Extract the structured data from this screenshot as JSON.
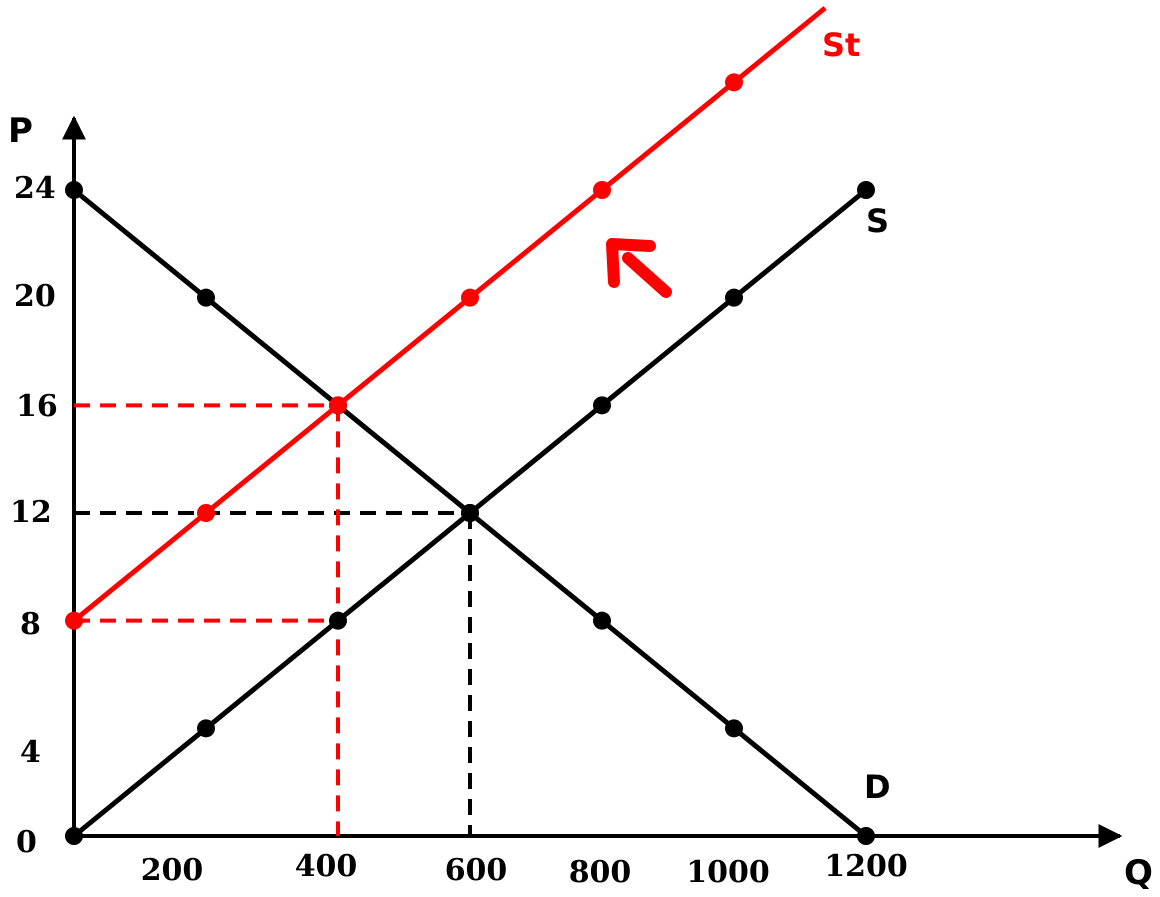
{
  "chart_data": {
    "type": "line",
    "title": "",
    "xlabel": "Q",
    "ylabel": "P",
    "x_ticks": [
      "200",
      "400",
      "600",
      "800",
      "1000",
      "1200"
    ],
    "y_ticks": [
      "0",
      "4",
      "8",
      "12",
      "16",
      "20",
      "24"
    ],
    "xlim": [
      0,
      1200
    ],
    "ylim": [
      0,
      24
    ],
    "grid": false,
    "series": [
      {
        "name": "D",
        "color": "#000000",
        "points": [
          [
            0,
            24
          ],
          [
            200,
            20
          ],
          [
            400,
            16
          ],
          [
            600,
            12
          ],
          [
            800,
            8
          ],
          [
            1000,
            4
          ],
          [
            1200,
            0
          ]
        ]
      },
      {
        "name": "S",
        "color": "#000000",
        "points": [
          [
            0,
            0
          ],
          [
            200,
            4
          ],
          [
            400,
            8
          ],
          [
            600,
            12
          ],
          [
            800,
            16
          ],
          [
            1000,
            20
          ],
          [
            1200,
            24
          ]
        ]
      },
      {
        "name": "St",
        "color": "#ff0000",
        "points": [
          [
            0,
            8
          ],
          [
            200,
            12
          ],
          [
            400,
            16
          ],
          [
            600,
            20
          ],
          [
            800,
            24
          ],
          [
            1000,
            28
          ]
        ]
      }
    ],
    "guides": [
      {
        "color": "#000000",
        "x": 600,
        "y": 12
      },
      {
        "color": "#ff0000",
        "x": 400,
        "y": 16
      },
      {
        "color": "#ff0000",
        "x": 400,
        "y": 8
      }
    ],
    "annotations": [
      {
        "type": "arrow",
        "color": "#ff0000",
        "direction": "up-left",
        "meaning": "supply shifts left"
      }
    ]
  }
}
